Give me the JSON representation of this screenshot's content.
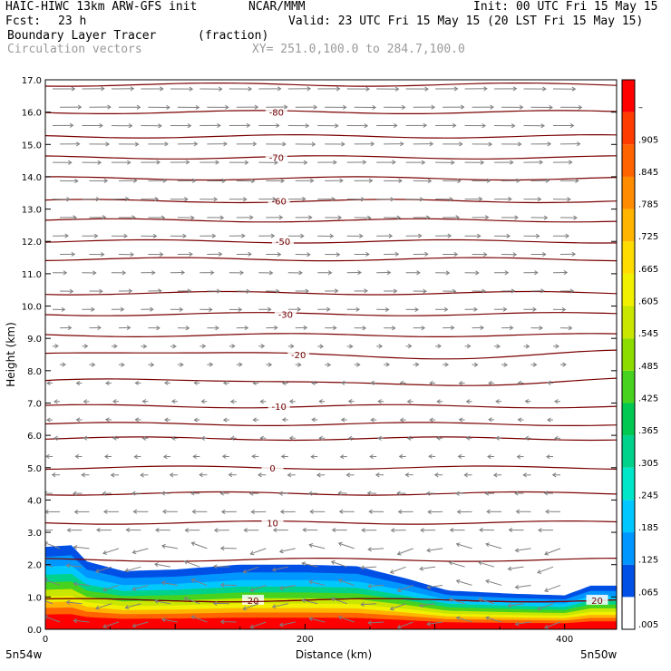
{
  "header": {
    "model": "HAIC-HIWC 13km ARW-GFS init",
    "org": "NCAR/MMM",
    "init": "Init: 00 UTC Fri 15 May 15",
    "fcst_label": "Fcst:",
    "fcst_value": "23 h",
    "valid": "Valid: 23 UTC Fri 15 May 15 (20 LST Fri 15 May 15)",
    "field_name": "Boundary Layer Tracer",
    "field_units": "(fraction)",
    "overlay_name": "Circulation vectors",
    "xsect": "XY= 251.0,100.0 to 284.7,100.0"
  },
  "chart_data": {
    "type": "cross-section",
    "ylabel": "Height (km)",
    "xlabel": "Distance (km)",
    "ylim": [
      0,
      17
    ],
    "xlim": [
      0,
      440
    ],
    "yticks": [
      "0.0",
      "1.0",
      "2.0",
      "3.0",
      "4.0",
      "5.0",
      "6.0",
      "7.0",
      "8.0",
      "9.0",
      "10.0",
      "11.0",
      "12.0",
      "13.0",
      "14.0",
      "15.0",
      "16.0",
      "17.0"
    ],
    "xticks": [
      {
        "x": 0,
        "label": "0"
      },
      {
        "x": 200,
        "label": "200"
      },
      {
        "x": 400,
        "label": "400"
      }
    ],
    "x_endpoints": {
      "left": "5n54w",
      "right": "5n50w"
    },
    "colorbar_labels": [
      ".005",
      ".065",
      ".125",
      ".185",
      ".245",
      ".305",
      ".365",
      ".425",
      ".485",
      ".545",
      ".605",
      ".665",
      ".725",
      ".785",
      ".845",
      ".905",
      "–"
    ],
    "colorbar_colors": [
      "#ffffff",
      "#0050e6",
      "#0096ff",
      "#00c8ff",
      "#00e6c8",
      "#00d28c",
      "#00c850",
      "#46d21e",
      "#8cdc00",
      "#c8e600",
      "#f0f000",
      "#ffdc00",
      "#ffb400",
      "#ff8c00",
      "#ff6400",
      "#ff3c00",
      "#ff0000"
    ],
    "tracer_top_km": [
      {
        "x": 0,
        "z": 2.55
      },
      {
        "x": 20,
        "z": 2.6
      },
      {
        "x": 32,
        "z": 2.1
      },
      {
        "x": 60,
        "z": 1.8
      },
      {
        "x": 100,
        "z": 1.85
      },
      {
        "x": 150,
        "z": 2.0
      },
      {
        "x": 200,
        "z": 2.0
      },
      {
        "x": 240,
        "z": 1.95
      },
      {
        "x": 280,
        "z": 1.55
      },
      {
        "x": 310,
        "z": 1.2
      },
      {
        "x": 360,
        "z": 1.1
      },
      {
        "x": 400,
        "z": 1.05
      },
      {
        "x": 420,
        "z": 1.35
      },
      {
        "x": 440,
        "z": 1.35
      }
    ],
    "temperature_contours": [
      {
        "label": "-80",
        "z": 16.0,
        "label_x": 178
      },
      {
        "label": "-70",
        "z": 14.6,
        "label_x": 178
      },
      {
        "label": "-60",
        "z": 13.25,
        "label_x": 180
      },
      {
        "label": "-50",
        "z": 12.0,
        "label_x": 183
      },
      {
        "label": "-30",
        "z": 9.75,
        "label_x": 185
      },
      {
        "label": "-20",
        "z": 8.5,
        "label_x": 195
      },
      {
        "label": "-10",
        "z": 6.9,
        "label_x": 180
      },
      {
        "label": "0",
        "z": 5.0,
        "label_x": 175
      },
      {
        "label": "10",
        "z": 3.3,
        "label_x": 175
      },
      {
        "label": "20",
        "z": 0.9,
        "label_x": 160
      },
      {
        "label": "20",
        "z": 0.9,
        "label_x": 425
      }
    ],
    "extra_contour_levels_km": [
      16.85,
      15.25,
      13.95,
      12.65,
      11.45,
      10.4,
      9.1,
      7.65,
      6.35,
      5.9,
      4.2,
      2.15
    ]
  }
}
